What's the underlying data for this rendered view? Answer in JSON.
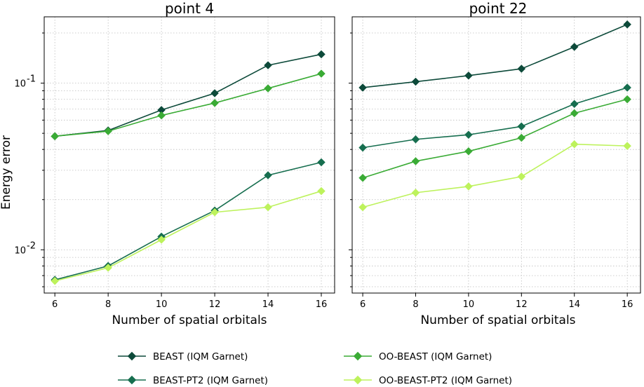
{
  "chart_data": [
    {
      "type": "line",
      "title": "point 4",
      "xlabel": "Number of spatial orbitals",
      "ylabel": "Energy error",
      "yscale": "log",
      "ylim": [
        0.0055,
        0.25
      ],
      "xlim": [
        5.6,
        16.5
      ],
      "x": [
        6,
        8,
        10,
        12,
        14,
        16
      ],
      "x_ticks": [
        "6",
        "8",
        "10",
        "12",
        "14",
        "16"
      ],
      "y_ticks": [
        {
          "value": 0.1,
          "base": "10",
          "exp": "-1"
        },
        {
          "value": 0.01,
          "base": "10",
          "exp": "-2"
        }
      ],
      "grid": true,
      "series": [
        {
          "name": "BEAST (IQM Garnet)",
          "color": "#0d4a3a",
          "values": [
            0.048,
            0.052,
            0.069,
            0.087,
            0.128,
            0.149
          ]
        },
        {
          "name": "BEAST-PT2 (IQM Garnet)",
          "color": "#166e4f",
          "values": [
            0.0066,
            0.008,
            0.012,
            0.0172,
            0.028,
            0.0335
          ]
        },
        {
          "name": "OO-BEAST (IQM Garnet)",
          "color": "#3aab35",
          "values": [
            0.048,
            0.0515,
            0.064,
            0.076,
            0.093,
            0.114
          ]
        },
        {
          "name": "OO-BEAST-PT2 (IQM Garnet)",
          "color": "#bdf25c",
          "values": [
            0.0065,
            0.0078,
            0.0115,
            0.0168,
            0.018,
            0.0225
          ]
        }
      ]
    },
    {
      "type": "line",
      "title": "point 22",
      "xlabel": "Number of spatial orbitals",
      "ylabel": "",
      "yscale": "log",
      "ylim": [
        0.0055,
        0.25
      ],
      "xlim": [
        5.6,
        16.5
      ],
      "x": [
        6,
        8,
        10,
        12,
        14,
        16
      ],
      "x_ticks": [
        "6",
        "8",
        "10",
        "12",
        "14",
        "16"
      ],
      "grid": true,
      "series": [
        {
          "name": "BEAST (IQM Garnet)",
          "color": "#0d4a3a",
          "values": [
            0.094,
            0.102,
            0.111,
            0.122,
            0.165,
            0.225
          ]
        },
        {
          "name": "BEAST-PT2 (IQM Garnet)",
          "color": "#166e4f",
          "values": [
            0.041,
            0.046,
            0.049,
            0.055,
            0.075,
            0.094
          ]
        },
        {
          "name": "OO-BEAST (IQM Garnet)",
          "color": "#3aab35",
          "values": [
            0.027,
            0.034,
            0.039,
            0.047,
            0.066,
            0.08
          ]
        },
        {
          "name": "OO-BEAST-PT2 (IQM Garnet)",
          "color": "#bdf25c",
          "values": [
            0.018,
            0.022,
            0.024,
            0.0275,
            0.043,
            0.042
          ]
        }
      ]
    }
  ],
  "legend": {
    "placement": "bottom",
    "entries": [
      {
        "label": "BEAST (IQM Garnet)",
        "color": "#0d4a3a"
      },
      {
        "label": "OO-BEAST (IQM Garnet)",
        "color": "#3aab35"
      },
      {
        "label": "BEAST-PT2 (IQM Garnet)",
        "color": "#166e4f"
      },
      {
        "label": "OO-BEAST-PT2 (IQM Garnet)",
        "color": "#bdf25c"
      }
    ]
  },
  "marker": "diamond"
}
